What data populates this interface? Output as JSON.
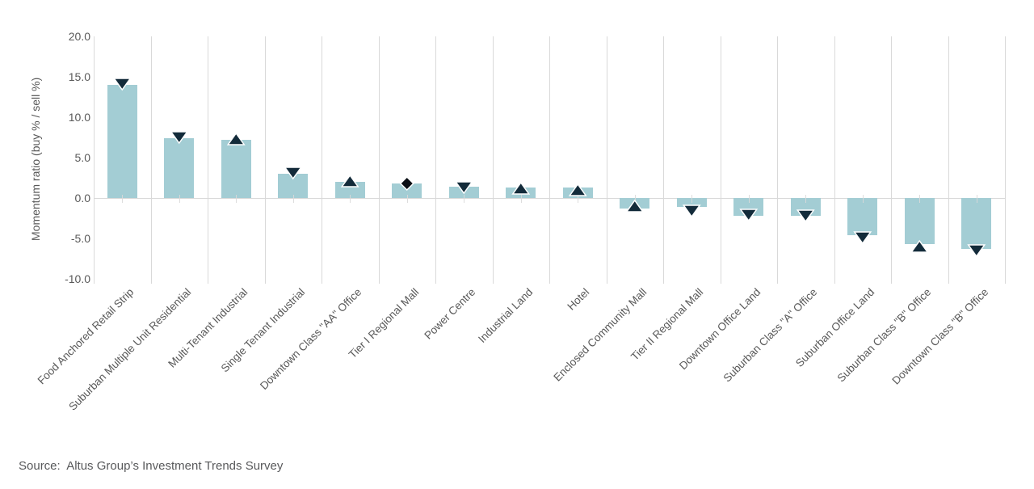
{
  "chart_data": {
    "type": "bar",
    "title": "",
    "xlabel": "",
    "ylabel": "Momentum ratio (buy % / sell %)",
    "ylim": [
      -10.0,
      20.0
    ],
    "ytick_values": [
      20,
      15,
      10,
      5,
      0,
      -5,
      -10
    ],
    "ytick_labels": [
      "20.0",
      "15.0",
      "10.0",
      "5.0",
      "0.0",
      "-5.0",
      "-10.0"
    ],
    "grid": "vertical category-boundary gridlines only; gray zero axis line; no horizontal gridlines",
    "legend": "none",
    "categories": [
      "Food Anchored Retail Strip",
      "Suburban Multiple Unit Residential",
      "Multi-Tenant Industrial",
      "Single Tenant Industrial",
      "Downtown Class \"AA\" Office",
      "Tier I Regional Mall",
      "Power Centre",
      "Industrial Land",
      "Hotel",
      "Enclosed Community Mall",
      "Tier II Regional Mall",
      "Downtown Office Land",
      "Suburban Class \"A\" Office",
      "Suburban Office Land",
      "Suburban Class \"B\" Office",
      "Downtown Class \"B\" Office"
    ],
    "series": [
      {
        "name": "Momentum ratio (buy % / sell %)",
        "type": "bar",
        "values": [
          14.0,
          7.4,
          7.2,
          3.0,
          2.0,
          1.8,
          1.4,
          1.3,
          1.3,
          -1.3,
          -1.1,
          -2.2,
          -2.2,
          -4.6,
          -5.7,
          -6.3
        ]
      },
      {
        "name": "Trend direction markers",
        "type": "marker",
        "markers": [
          {
            "shape": "triangle-down",
            "value": 14.1
          },
          {
            "shape": "triangle-down",
            "value": 7.5
          },
          {
            "shape": "triangle-up",
            "value": 7.3
          },
          {
            "shape": "triangle-down",
            "value": 3.1
          },
          {
            "shape": "triangle-up",
            "value": 2.1
          },
          {
            "shape": "diamond",
            "value": 1.8
          },
          {
            "shape": "triangle-down",
            "value": 1.3
          },
          {
            "shape": "triangle-up",
            "value": 1.2
          },
          {
            "shape": "triangle-up",
            "value": 1.0
          },
          {
            "shape": "triangle-up",
            "value": -1.0
          },
          {
            "shape": "triangle-down",
            "value": -1.6
          },
          {
            "shape": "triangle-down",
            "value": -2.1
          },
          {
            "shape": "triangle-down",
            "value": -2.2
          },
          {
            "shape": "triangle-down",
            "value": -4.9
          },
          {
            "shape": "triangle-up",
            "value": -6.0
          },
          {
            "shape": "triangle-down",
            "value": -6.5
          }
        ]
      }
    ],
    "colors": {
      "bar": "#a3cdd4",
      "marker": "#132b3a",
      "diamond": "#0a0e14",
      "marker_outline": "#ffffff",
      "gridline": "#d9d9d9",
      "axis_text": "#595959",
      "background": "#ffffff"
    }
  },
  "source_note": "Source:  Altus Group’s Investment Trends Survey"
}
